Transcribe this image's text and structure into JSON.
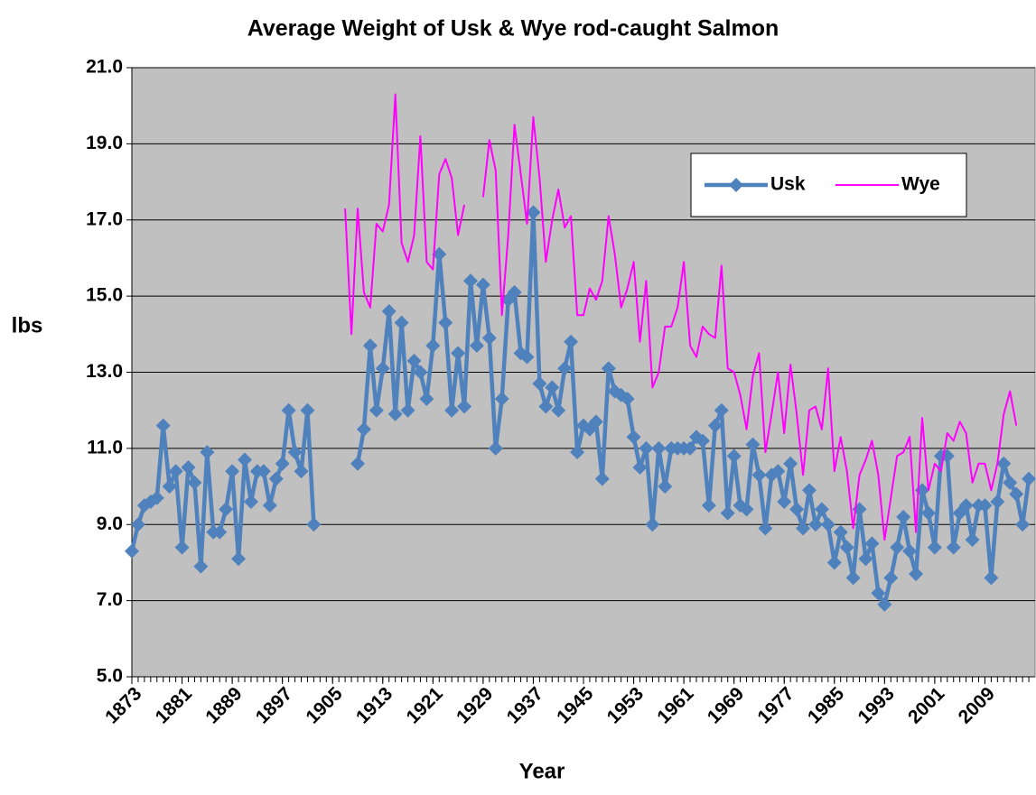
{
  "chart_data": {
    "type": "line",
    "title": "Average Weight of Usk & Wye rod-caught Salmon",
    "x_label": "Year",
    "y_label": "lbs",
    "x": [
      1873,
      1874,
      1875,
      1876,
      1877,
      1878,
      1879,
      1880,
      1881,
      1882,
      1883,
      1884,
      1885,
      1886,
      1887,
      1888,
      1889,
      1890,
      1891,
      1892,
      1893,
      1894,
      1895,
      1896,
      1897,
      1898,
      1899,
      1900,
      1901,
      1902,
      1903,
      1904,
      1905,
      1906,
      1907,
      1908,
      1909,
      1910,
      1911,
      1912,
      1913,
      1914,
      1915,
      1916,
      1917,
      1918,
      1919,
      1920,
      1921,
      1922,
      1923,
      1924,
      1925,
      1926,
      1927,
      1928,
      1929,
      1930,
      1931,
      1932,
      1933,
      1934,
      1935,
      1936,
      1937,
      1938,
      1939,
      1940,
      1941,
      1942,
      1943,
      1944,
      1945,
      1946,
      1947,
      1948,
      1949,
      1950,
      1951,
      1952,
      1953,
      1954,
      1955,
      1956,
      1957,
      1958,
      1959,
      1960,
      1961,
      1962,
      1963,
      1964,
      1965,
      1966,
      1967,
      1968,
      1969,
      1970,
      1971,
      1972,
      1973,
      1974,
      1975,
      1976,
      1977,
      1978,
      1979,
      1980,
      1981,
      1982,
      1983,
      1984,
      1985,
      1986,
      1987,
      1988,
      1989,
      1990,
      1991,
      1992,
      1993,
      1994,
      1995,
      1996,
      1997,
      1998,
      1999,
      2000,
      2001,
      2002,
      2003,
      2004,
      2005,
      2006,
      2007,
      2008,
      2009,
      2010,
      2011,
      2012,
      2013,
      2014,
      2015,
      2016
    ],
    "series": [
      {
        "name": "Usk",
        "color": "#4f81bd",
        "marker": "diamond",
        "values": [
          8.3,
          9.0,
          9.5,
          9.6,
          9.7,
          11.6,
          10.0,
          10.4,
          8.4,
          10.5,
          10.1,
          7.9,
          10.9,
          8.8,
          8.8,
          9.4,
          10.4,
          8.1,
          10.7,
          9.6,
          10.4,
          10.4,
          9.5,
          10.2,
          10.6,
          12.0,
          10.9,
          10.4,
          12.0,
          9.0,
          null,
          null,
          null,
          null,
          null,
          null,
          10.6,
          11.5,
          13.7,
          12.0,
          13.1,
          14.6,
          11.9,
          14.3,
          12.0,
          13.3,
          13.0,
          12.3,
          13.7,
          16.1,
          14.3,
          12.0,
          13.5,
          12.1,
          15.4,
          13.7,
          15.3,
          13.9,
          11.0,
          12.3,
          14.9,
          15.1,
          13.5,
          13.4,
          17.2,
          12.7,
          12.1,
          12.6,
          12.0,
          13.1,
          13.8,
          10.9,
          11.6,
          11.5,
          11.7,
          10.2,
          13.1,
          12.5,
          12.4,
          12.3,
          11.3,
          10.5,
          11.0,
          9.0,
          11.0,
          10.0,
          11.0,
          11.0,
          11.0,
          11.0,
          11.3,
          11.2,
          9.5,
          11.6,
          12.0,
          9.3,
          10.8,
          9.5,
          9.4,
          11.1,
          10.3,
          8.9,
          10.3,
          10.4,
          9.6,
          10.6,
          9.4,
          8.9,
          9.9,
          9.0,
          9.4,
          9.0,
          8.0,
          8.8,
          8.4,
          7.6,
          9.4,
          8.1,
          8.5,
          7.2,
          6.9,
          7.6,
          8.4,
          9.2,
          8.3,
          7.7,
          9.9,
          9.3,
          8.4,
          10.8,
          10.8,
          8.4,
          9.3,
          9.5,
          8.6,
          9.5,
          9.5,
          7.6,
          9.6,
          10.6,
          10.1,
          9.8,
          9.0,
          10.2
        ]
      },
      {
        "name": "Wye",
        "color": "#ff00ff",
        "marker": "none",
        "values": [
          null,
          null,
          null,
          null,
          null,
          null,
          null,
          null,
          null,
          null,
          null,
          null,
          null,
          null,
          null,
          null,
          null,
          null,
          null,
          null,
          null,
          null,
          null,
          null,
          null,
          null,
          null,
          null,
          null,
          null,
          null,
          null,
          null,
          null,
          17.3,
          14.0,
          17.3,
          15.1,
          14.7,
          16.9,
          16.7,
          17.4,
          20.3,
          16.4,
          15.9,
          16.6,
          19.2,
          15.9,
          15.7,
          18.2,
          18.6,
          18.1,
          16.6,
          17.4,
          null,
          null,
          17.6,
          19.1,
          18.3,
          14.5,
          16.6,
          19.5,
          18.2,
          16.9,
          19.7,
          18.1,
          15.9,
          17.0,
          17.8,
          16.8,
          17.1,
          14.5,
          14.5,
          15.2,
          14.9,
          15.4,
          17.1,
          16.1,
          14.7,
          15.2,
          15.9,
          13.8,
          15.4,
          12.6,
          13.0,
          14.2,
          14.2,
          14.7,
          15.9,
          13.7,
          13.4,
          14.2,
          14.0,
          13.9,
          15.8,
          13.1,
          13.0,
          12.4,
          11.5,
          12.9,
          13.5,
          10.9,
          11.9,
          13.0,
          11.4,
          13.2,
          11.9,
          10.3,
          12.0,
          12.1,
          11.5,
          13.1,
          10.4,
          11.3,
          10.4,
          8.9,
          10.3,
          10.7,
          11.2,
          10.3,
          8.6,
          9.7,
          10.8,
          10.9,
          11.3,
          8.8,
          11.8,
          9.9,
          10.6,
          10.4,
          11.4,
          11.2,
          11.7,
          11.4,
          10.1,
          10.6,
          10.6,
          9.9,
          10.6,
          11.9,
          12.5,
          11.6,
          null,
          null
        ]
      }
    ],
    "xlim": [
      1873,
      2017
    ],
    "xticks": [
      1873,
      1881,
      1889,
      1897,
      1905,
      1913,
      1921,
      1929,
      1937,
      1945,
      1953,
      1961,
      1969,
      1977,
      1985,
      1993,
      2001,
      2009
    ],
    "ylim": [
      5,
      21
    ],
    "yticks": [
      {
        "value": 5,
        "label": "5.0"
      },
      {
        "value": 7,
        "label": "7.0"
      },
      {
        "value": 9,
        "label": "9.0"
      },
      {
        "value": 11,
        "label": "11.0"
      },
      {
        "value": 13,
        "label": "13.0"
      },
      {
        "value": 15,
        "label": "15.0"
      },
      {
        "value": 17,
        "label": "17.0"
      },
      {
        "value": 19,
        "label": "19.0"
      },
      {
        "value": 21,
        "label": "21.0"
      }
    ],
    "grid": true,
    "legend": "upper right",
    "plot_background": "#c0c0c0"
  }
}
